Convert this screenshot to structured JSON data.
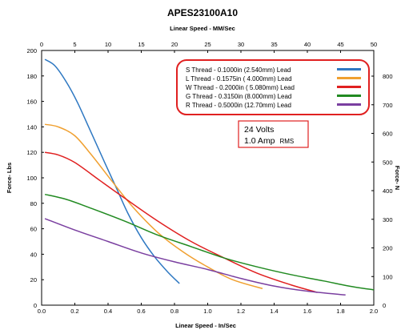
{
  "chart_data": {
    "type": "line",
    "title": "APES23100A10",
    "top_axis_label": "Linear Speed - MM/Sec",
    "xlabel": "Linear Speed - In/Sec",
    "ylabel": "Force- Lbs",
    "right_axis_label": "Force- N",
    "xlim": [
      0,
      2.0
    ],
    "ylim": [
      0,
      200
    ],
    "top_xlim": [
      0,
      50
    ],
    "right_ylim_range": [
      0,
      889.6
    ],
    "x_ticks": [
      "0.0",
      "0.2",
      "0.4",
      "0.6",
      "0.8",
      "1.0",
      "1.2",
      "1.4",
      "1.6",
      "1.8",
      "2.0"
    ],
    "y_ticks": [
      "0",
      "20",
      "40",
      "60",
      "80",
      "100",
      "120",
      "140",
      "160",
      "180",
      "200"
    ],
    "top_ticks": [
      "0",
      "5",
      "10",
      "15",
      "20",
      "25",
      "30",
      "35",
      "40",
      "45",
      "50"
    ],
    "right_ticks": [
      "0",
      "100",
      "200",
      "300",
      "400",
      "500",
      "600",
      "700",
      "800"
    ],
    "grid": false,
    "legend_position": "top-right",
    "series": [
      {
        "name": "S Thread -  0.1000in (2.540mm) Lead",
        "color": "#2e78c2",
        "x": [
          0.02,
          0.08,
          0.15,
          0.22,
          0.3,
          0.38,
          0.45,
          0.52,
          0.6,
          0.68,
          0.76,
          0.83
        ],
        "y": [
          193,
          188,
          175,
          158,
          135,
          112,
          92,
          72,
          53,
          38,
          26,
          17
        ]
      },
      {
        "name": "L Thread -  0.1575in ( 4.000mm) Lead",
        "color": "#f0a030",
        "x": [
          0.02,
          0.1,
          0.2,
          0.3,
          0.42,
          0.55,
          0.7,
          0.85,
          1.0,
          1.15,
          1.33
        ],
        "y": [
          142,
          140,
          133,
          118,
          98,
          77,
          57,
          42,
          30,
          20,
          13
        ]
      },
      {
        "name": "W Thread -  0.2000in ( 5.080mm) Lead",
        "color": "#e02020",
        "x": [
          0.02,
          0.1,
          0.2,
          0.35,
          0.5,
          0.7,
          0.9,
          1.1,
          1.3,
          1.5,
          1.66
        ],
        "y": [
          120,
          118,
          112,
          98,
          84,
          66,
          50,
          37,
          25,
          16,
          10
        ]
      },
      {
        "name": "G Thread -  0.3150in (8.000mm) Lead",
        "color": "#218a21",
        "x": [
          0.02,
          0.15,
          0.3,
          0.5,
          0.7,
          0.9,
          1.1,
          1.3,
          1.5,
          1.7,
          1.85,
          2.0
        ],
        "y": [
          87,
          83,
          76,
          66,
          55,
          46,
          37,
          30,
          24,
          19,
          15,
          12
        ]
      },
      {
        "name": "R Thread -  0.5000in (12.70mm) Lead",
        "color": "#7a3fa0",
        "x": [
          0.02,
          0.2,
          0.4,
          0.6,
          0.8,
          1.0,
          1.2,
          1.4,
          1.6,
          1.83
        ],
        "y": [
          68,
          59,
          50,
          41,
          34,
          28,
          21,
          15,
          11,
          8
        ]
      }
    ],
    "annotation": {
      "line1": "24 Volts",
      "line2_main": "1.0 Amp",
      "line2_small": "RMS",
      "border_color": "#e02020"
    }
  }
}
